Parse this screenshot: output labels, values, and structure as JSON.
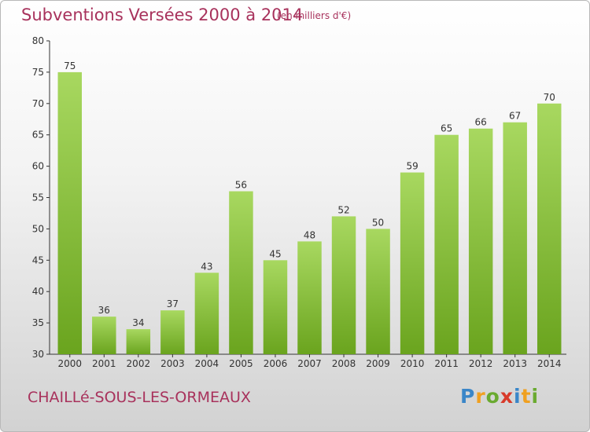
{
  "title": "Subventions Versées 2000 à 2014",
  "subtitle": "(en milliers d'€)",
  "commune": "CHAILLé-SOUS-LES-ORMEAUX",
  "logo": {
    "letters": [
      "P",
      "r",
      "o",
      "x",
      "i",
      "t",
      "i"
    ],
    "colors": [
      "#3a86c8",
      "#f0a020",
      "#6aaa30",
      "#d83a2a",
      "#3a86c8",
      "#f0a020",
      "#6aaa30"
    ]
  },
  "colors": {
    "bar_light": "#a8d860",
    "bar_dark": "#6aa41e",
    "axis": "#333333",
    "text": "#333333"
  },
  "chart_data": {
    "type": "bar",
    "title": "Subventions Versées 2000 à 2014",
    "ylabel": "",
    "xlabel": "",
    "ylim": [
      30,
      80
    ],
    "yticks": [
      30,
      35,
      40,
      45,
      50,
      55,
      60,
      65,
      70,
      75,
      80
    ],
    "grid": false,
    "categories": [
      "2000",
      "2001",
      "2002",
      "2003",
      "2004",
      "2005",
      "2006",
      "2007",
      "2008",
      "2009",
      "2010",
      "2011",
      "2012",
      "2013",
      "2014"
    ],
    "values": [
      75,
      36,
      34,
      37,
      43,
      56,
      45,
      48,
      52,
      50,
      59,
      65,
      66,
      67,
      70
    ]
  }
}
